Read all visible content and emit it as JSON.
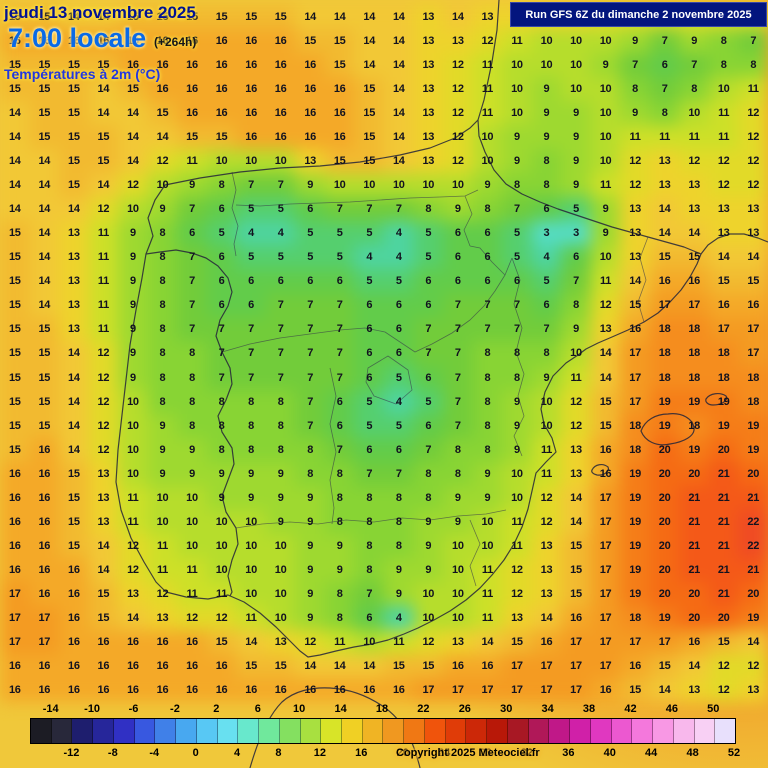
{
  "header": {
    "date": "jeudi 13 novembre 2025",
    "time": "7:00 locale",
    "offset": "(+264h)",
    "variable": "Températures à 2m (°C)"
  },
  "banner": {
    "text": "Run GFS 6Z du dimanche 2 novembre 2025"
  },
  "footer": {
    "copyright": "Copyright 2025 Meteociel.fr"
  },
  "legend": {
    "min": -16,
    "max": 52,
    "step": 2,
    "top_labels": [
      "-14",
      "-10",
      "-6",
      "-2",
      "2",
      "6",
      "10",
      "14",
      "18",
      "22",
      "26",
      "30",
      "34",
      "38",
      "42",
      "46",
      "50"
    ],
    "bottom_labels": [
      "-12",
      "-8",
      "-4",
      "0",
      "4",
      "8",
      "12",
      "16",
      "20",
      "24",
      "28",
      "32",
      "36",
      "40",
      "44",
      "48",
      "52"
    ],
    "swatches": [
      "#1c1c24",
      "#28283a",
      "#1e1e6e",
      "#26269a",
      "#3030c4",
      "#3858e0",
      "#4080e8",
      "#48a8f0",
      "#58c8f4",
      "#68e0f0",
      "#68e8cc",
      "#70e89c",
      "#84e060",
      "#a8e040",
      "#d8e428",
      "#f0d024",
      "#f0b424",
      "#f09820",
      "#f07814",
      "#f0540c",
      "#e03c08",
      "#cc2808",
      "#b81808",
      "#a81824",
      "#b01858",
      "#c01888",
      "#d020a8",
      "#e038c0",
      "#ec58d0",
      "#f478dc",
      "#f898e4",
      "#f8b8ec",
      "#f8d0f4",
      "#e8e0fc"
    ]
  },
  "map": {
    "type": "heatmap",
    "cols": 26,
    "rows": 29,
    "color_stops": [
      [
        -2,
        "#48a8f0"
      ],
      [
        0,
        "#58c8f4"
      ],
      [
        2,
        "#62e0e8"
      ],
      [
        3,
        "#55dcc4"
      ],
      [
        4,
        "#4ed4a0"
      ],
      [
        5,
        "#55cf6e"
      ],
      [
        6,
        "#62cc4a"
      ],
      [
        7,
        "#72cc3a"
      ],
      [
        8,
        "#88d434"
      ],
      [
        9,
        "#9ed930"
      ],
      [
        10,
        "#b6dd2c"
      ],
      [
        11,
        "#cde028"
      ],
      [
        12,
        "#e2da28"
      ],
      [
        13,
        "#eed32c"
      ],
      [
        14,
        "#f2c836"
      ],
      [
        15,
        "#f2ba30"
      ],
      [
        16,
        "#f4a928"
      ],
      [
        17,
        "#f49b22"
      ],
      [
        18,
        "#f58d1e"
      ],
      [
        19,
        "#f57d18"
      ],
      [
        20,
        "#f56b14"
      ],
      [
        21,
        "#f45918"
      ],
      [
        22,
        "#ef4b24"
      ],
      [
        24,
        "#e03808"
      ]
    ],
    "temperature_grid": [
      [
        15,
        15,
        14,
        14,
        15,
        15,
        15,
        15,
        15,
        15,
        14,
        14,
        14,
        14,
        13,
        14,
        13,
        13,
        13,
        13,
        12,
        12,
        12,
        12,
        12,
        12
      ],
      [
        16,
        16,
        16,
        16,
        16,
        16,
        16,
        16,
        16,
        16,
        15,
        15,
        14,
        14,
        13,
        13,
        12,
        11,
        10,
        10,
        10,
        9,
        7,
        9,
        8,
        7
      ],
      [
        15,
        15,
        15,
        15,
        16,
        16,
        16,
        16,
        16,
        16,
        16,
        15,
        14,
        14,
        13,
        12,
        11,
        10,
        10,
        10,
        9,
        7,
        6,
        7,
        8,
        8
      ],
      [
        15,
        15,
        15,
        14,
        15,
        16,
        16,
        16,
        16,
        16,
        16,
        16,
        15,
        14,
        13,
        12,
        11,
        10,
        9,
        10,
        10,
        8,
        7,
        8,
        10,
        11
      ],
      [
        14,
        15,
        15,
        14,
        14,
        15,
        16,
        16,
        16,
        16,
        16,
        16,
        15,
        14,
        13,
        12,
        11,
        10,
        9,
        9,
        10,
        9,
        8,
        10,
        11,
        12
      ],
      [
        14,
        15,
        15,
        15,
        14,
        14,
        15,
        15,
        16,
        16,
        16,
        16,
        15,
        14,
        13,
        12,
        10,
        9,
        9,
        9,
        10,
        11,
        11,
        11,
        11,
        12
      ],
      [
        14,
        14,
        15,
        15,
        14,
        12,
        11,
        10,
        10,
        10,
        13,
        15,
        15,
        14,
        13,
        12,
        10,
        9,
        8,
        9,
        10,
        12,
        13,
        12,
        12,
        12
      ],
      [
        14,
        14,
        15,
        14,
        12,
        10,
        9,
        8,
        7,
        7,
        9,
        10,
        10,
        10,
        10,
        10,
        9,
        8,
        8,
        9,
        11,
        12,
        13,
        13,
        12,
        12
      ],
      [
        14,
        14,
        14,
        12,
        10,
        9,
        7,
        6,
        5,
        5,
        6,
        7,
        7,
        7,
        8,
        9,
        8,
        7,
        6,
        5,
        9,
        13,
        14,
        13,
        13,
        13
      ],
      [
        15,
        14,
        13,
        11,
        9,
        8,
        6,
        5,
        4,
        4,
        5,
        5,
        5,
        4,
        5,
        6,
        6,
        5,
        3,
        3,
        9,
        13,
        14,
        14,
        13,
        13
      ],
      [
        15,
        14,
        13,
        11,
        9,
        8,
        7,
        6,
        5,
        5,
        5,
        5,
        4,
        4,
        5,
        6,
        6,
        5,
        4,
        6,
        10,
        13,
        15,
        15,
        14,
        14
      ],
      [
        15,
        14,
        13,
        11,
        9,
        8,
        7,
        6,
        6,
        6,
        6,
        6,
        5,
        5,
        6,
        6,
        6,
        6,
        5,
        7,
        11,
        14,
        16,
        16,
        15,
        15
      ],
      [
        15,
        14,
        13,
        11,
        9,
        8,
        7,
        6,
        6,
        7,
        7,
        7,
        6,
        6,
        6,
        7,
        7,
        7,
        6,
        8,
        12,
        15,
        17,
        17,
        16,
        16
      ],
      [
        15,
        15,
        13,
        11,
        9,
        8,
        7,
        7,
        7,
        7,
        7,
        7,
        6,
        6,
        7,
        7,
        7,
        7,
        7,
        9,
        13,
        16,
        18,
        18,
        17,
        17
      ],
      [
        15,
        15,
        14,
        12,
        9,
        8,
        8,
        7,
        7,
        7,
        7,
        7,
        6,
        6,
        7,
        7,
        8,
        8,
        8,
        10,
        14,
        17,
        18,
        18,
        18,
        17
      ],
      [
        15,
        15,
        14,
        12,
        9,
        8,
        8,
        7,
        7,
        7,
        7,
        7,
        6,
        5,
        6,
        7,
        8,
        8,
        9,
        11,
        14,
        17,
        18,
        18,
        18,
        18
      ],
      [
        15,
        15,
        14,
        12,
        10,
        8,
        8,
        8,
        8,
        8,
        7,
        6,
        5,
        4,
        5,
        7,
        8,
        9,
        10,
        12,
        15,
        17,
        19,
        19,
        19,
        18
      ],
      [
        15,
        15,
        14,
        12,
        10,
        9,
        8,
        8,
        8,
        8,
        7,
        6,
        5,
        5,
        6,
        7,
        8,
        9,
        10,
        12,
        15,
        18,
        19,
        18,
        19,
        19
      ],
      [
        15,
        16,
        14,
        12,
        10,
        9,
        9,
        8,
        8,
        8,
        8,
        7,
        6,
        6,
        7,
        8,
        8,
        9,
        11,
        13,
        16,
        18,
        20,
        19,
        20,
        19
      ],
      [
        16,
        16,
        15,
        13,
        10,
        9,
        9,
        9,
        9,
        9,
        8,
        8,
        7,
        7,
        8,
        8,
        9,
        10,
        11,
        13,
        16,
        19,
        20,
        20,
        21,
        20
      ],
      [
        16,
        16,
        15,
        13,
        11,
        10,
        10,
        9,
        9,
        9,
        9,
        8,
        8,
        8,
        8,
        9,
        9,
        10,
        12,
        14,
        17,
        19,
        20,
        21,
        21,
        21
      ],
      [
        16,
        16,
        15,
        13,
        11,
        10,
        10,
        10,
        10,
        9,
        9,
        8,
        8,
        8,
        9,
        9,
        10,
        11,
        12,
        14,
        17,
        19,
        20,
        21,
        21,
        22
      ],
      [
        16,
        16,
        15,
        14,
        12,
        11,
        10,
        10,
        10,
        10,
        9,
        9,
        8,
        8,
        9,
        10,
        10,
        11,
        13,
        15,
        17,
        19,
        20,
        21,
        21,
        22
      ],
      [
        16,
        16,
        16,
        14,
        12,
        11,
        11,
        10,
        10,
        10,
        9,
        9,
        8,
        9,
        9,
        10,
        11,
        12,
        13,
        15,
        17,
        19,
        20,
        21,
        21,
        21
      ],
      [
        17,
        16,
        16,
        15,
        13,
        12,
        11,
        11,
        10,
        10,
        9,
        8,
        7,
        9,
        10,
        10,
        11,
        12,
        13,
        15,
        17,
        19,
        20,
        20,
        21,
        20
      ],
      [
        17,
        17,
        16,
        15,
        14,
        13,
        12,
        12,
        11,
        10,
        9,
        8,
        6,
        4,
        10,
        10,
        11,
        13,
        14,
        16,
        17,
        18,
        19,
        20,
        20,
        19
      ],
      [
        17,
        17,
        16,
        16,
        16,
        16,
        16,
        15,
        14,
        13,
        12,
        11,
        10,
        11,
        12,
        13,
        14,
        15,
        16,
        17,
        17,
        17,
        17,
        16,
        15,
        14
      ],
      [
        16,
        16,
        16,
        16,
        16,
        16,
        16,
        16,
        15,
        15,
        14,
        14,
        14,
        15,
        15,
        16,
        16,
        17,
        17,
        17,
        17,
        16,
        15,
        14,
        12,
        12
      ],
      [
        16,
        16,
        16,
        16,
        16,
        16,
        16,
        16,
        16,
        16,
        16,
        16,
        16,
        16,
        17,
        17,
        17,
        17,
        17,
        17,
        16,
        15,
        14,
        13,
        12,
        13
      ]
    ]
  }
}
